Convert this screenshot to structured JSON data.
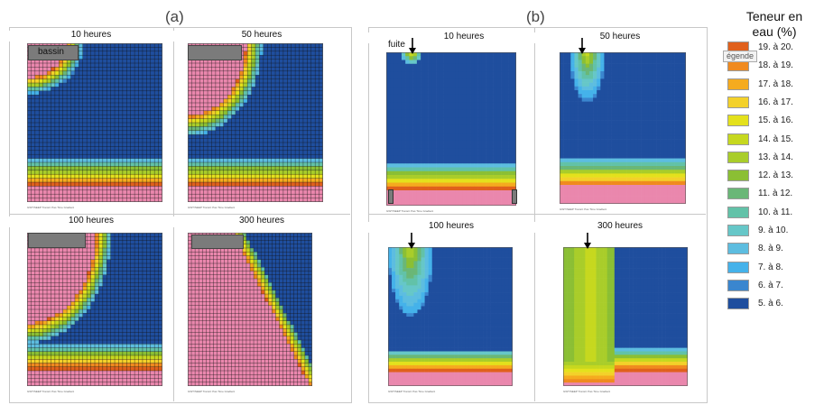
{
  "panels": {
    "a_label": "(a)",
    "b_label": "(b)"
  },
  "labels": {
    "bassin": "bassin",
    "fuite": "fuite",
    "footer_text": "GWT/SEEP  Transit: Pas  Time  Gradient"
  },
  "legend": {
    "title_line1": "Teneur en",
    "title_line2": "eau (%)",
    "tooltip": "égende",
    "items": [
      {
        "label": "19. à 20.",
        "color": "#e0601c"
      },
      {
        "label": "18. à 19.",
        "color": "#f08a1f"
      },
      {
        "label": "17. à 18.",
        "color": "#f5ab1f"
      },
      {
        "label": "16. à 17.",
        "color": "#f3d12a"
      },
      {
        "label": "15. à 16.",
        "color": "#e4e11c"
      },
      {
        "label": "14. à 15.",
        "color": "#c6d81f"
      },
      {
        "label": "13. à 14.",
        "color": "#a9cd2a"
      },
      {
        "label": "12. à 13.",
        "color": "#8bbf34"
      },
      {
        "label": "11. à 12.",
        "color": "#6ab777"
      },
      {
        "label": "10. à 11.",
        "color": "#62c2a8"
      },
      {
        "label": "9. à 10.",
        "color": "#66c7c8"
      },
      {
        "label": "8. à 9.",
        "color": "#5dbde0"
      },
      {
        "label": "7. à 8.",
        "color": "#45b2ea"
      },
      {
        "label": "6. à 7.",
        "color": "#3a86cf"
      },
      {
        "label": "5. à 6.",
        "color": "#1f4e9e"
      }
    ]
  },
  "colors": {
    "pink": "#ea87ad",
    "deep": "#1f4e9e",
    "grid": "#111111",
    "basin": "#7b7b7b"
  },
  "chart_data": [
    {
      "type": "heatmap",
      "group": "a",
      "title": "10 heures",
      "scenario": "bassin",
      "hours": 10
    },
    {
      "type": "heatmap",
      "group": "a",
      "title": "50 heures",
      "scenario": "bassin",
      "hours": 50
    },
    {
      "type": "heatmap",
      "group": "a",
      "title": "100 heures",
      "scenario": "bassin",
      "hours": 100
    },
    {
      "type": "heatmap",
      "group": "a",
      "title": "300 heures",
      "scenario": "bassin",
      "hours": 300
    },
    {
      "type": "heatmap",
      "group": "b",
      "title": "10 heures",
      "scenario": "fuite",
      "hours": 10
    },
    {
      "type": "heatmap",
      "group": "b",
      "title": "50 heures",
      "scenario": "fuite",
      "hours": 50
    },
    {
      "type": "heatmap",
      "group": "b",
      "title": "100 heures",
      "scenario": "fuite",
      "hours": 100
    },
    {
      "type": "heatmap",
      "group": "b",
      "title": "300 heures",
      "scenario": "fuite",
      "hours": 300
    }
  ]
}
